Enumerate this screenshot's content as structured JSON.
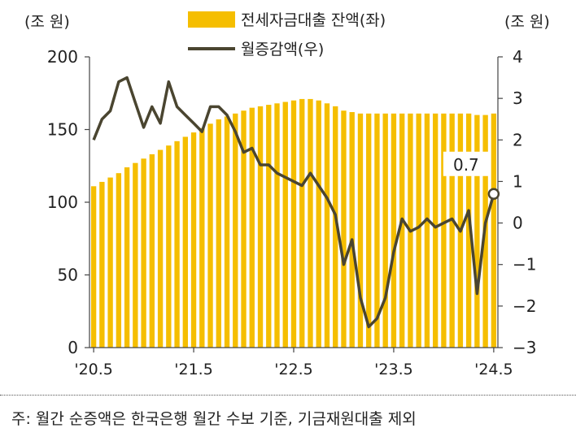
{
  "chart_data": {
    "type": "bar+line",
    "left_unit": "(조 원)",
    "right_unit": "(조 원)",
    "left_ylim": [
      0,
      200
    ],
    "left_ticks": [
      "0",
      "50",
      "100",
      "150",
      "200"
    ],
    "right_ylim": [
      -3,
      4
    ],
    "right_ticks": [
      "−3",
      "−2",
      "−1",
      "0",
      "1",
      "2",
      "3",
      "4"
    ],
    "x_tick_labels": [
      "'20.5",
      "'21.5",
      "'22.5",
      "'23.5",
      "'24.5"
    ],
    "x_tick_index": [
      0,
      12,
      24,
      36,
      48
    ],
    "legend": [
      {
        "name": "전세자금대출 잔액(좌)",
        "kind": "bar",
        "color": "#F5BE00"
      },
      {
        "name": "월증감액(우)",
        "kind": "line",
        "color": "#4A4530"
      }
    ],
    "bar_series": {
      "name": "전세자금대출 잔액(좌)",
      "color": "#F5BE00",
      "values": [
        111,
        114,
        117,
        120,
        124,
        127,
        130,
        133,
        136,
        139,
        142,
        145,
        148,
        151,
        154,
        157,
        159,
        161,
        163,
        165,
        166,
        167,
        168,
        169,
        170,
        171,
        171,
        170,
        168,
        166,
        163,
        162,
        161,
        161,
        161,
        161,
        161,
        161,
        161,
        161,
        161,
        161,
        161,
        161,
        161,
        161,
        160,
        160,
        161
      ]
    },
    "line_series": {
      "name": "월증감액(우)",
      "color": "#4A4530",
      "values": [
        2.0,
        2.5,
        2.7,
        3.4,
        3.5,
        2.9,
        2.3,
        2.8,
        2.4,
        3.4,
        2.8,
        2.6,
        2.4,
        2.2,
        2.8,
        2.8,
        2.6,
        2.2,
        1.7,
        1.8,
        1.4,
        1.4,
        1.2,
        1.1,
        1.0,
        0.9,
        1.2,
        0.9,
        0.6,
        0.2,
        -1.0,
        -0.4,
        -1.8,
        -2.5,
        -2.3,
        -1.8,
        -0.7,
        0.1,
        -0.2,
        -0.1,
        0.1,
        -0.1,
        0.0,
        0.1,
        -0.2,
        0.3,
        -1.7,
        0.0,
        0.7
      ]
    },
    "annotation": {
      "label": "0.7",
      "index": 48
    }
  },
  "note": "주: 월간 순증액은 한국은행 월간 수보 기준, 기금재원대출 제외"
}
